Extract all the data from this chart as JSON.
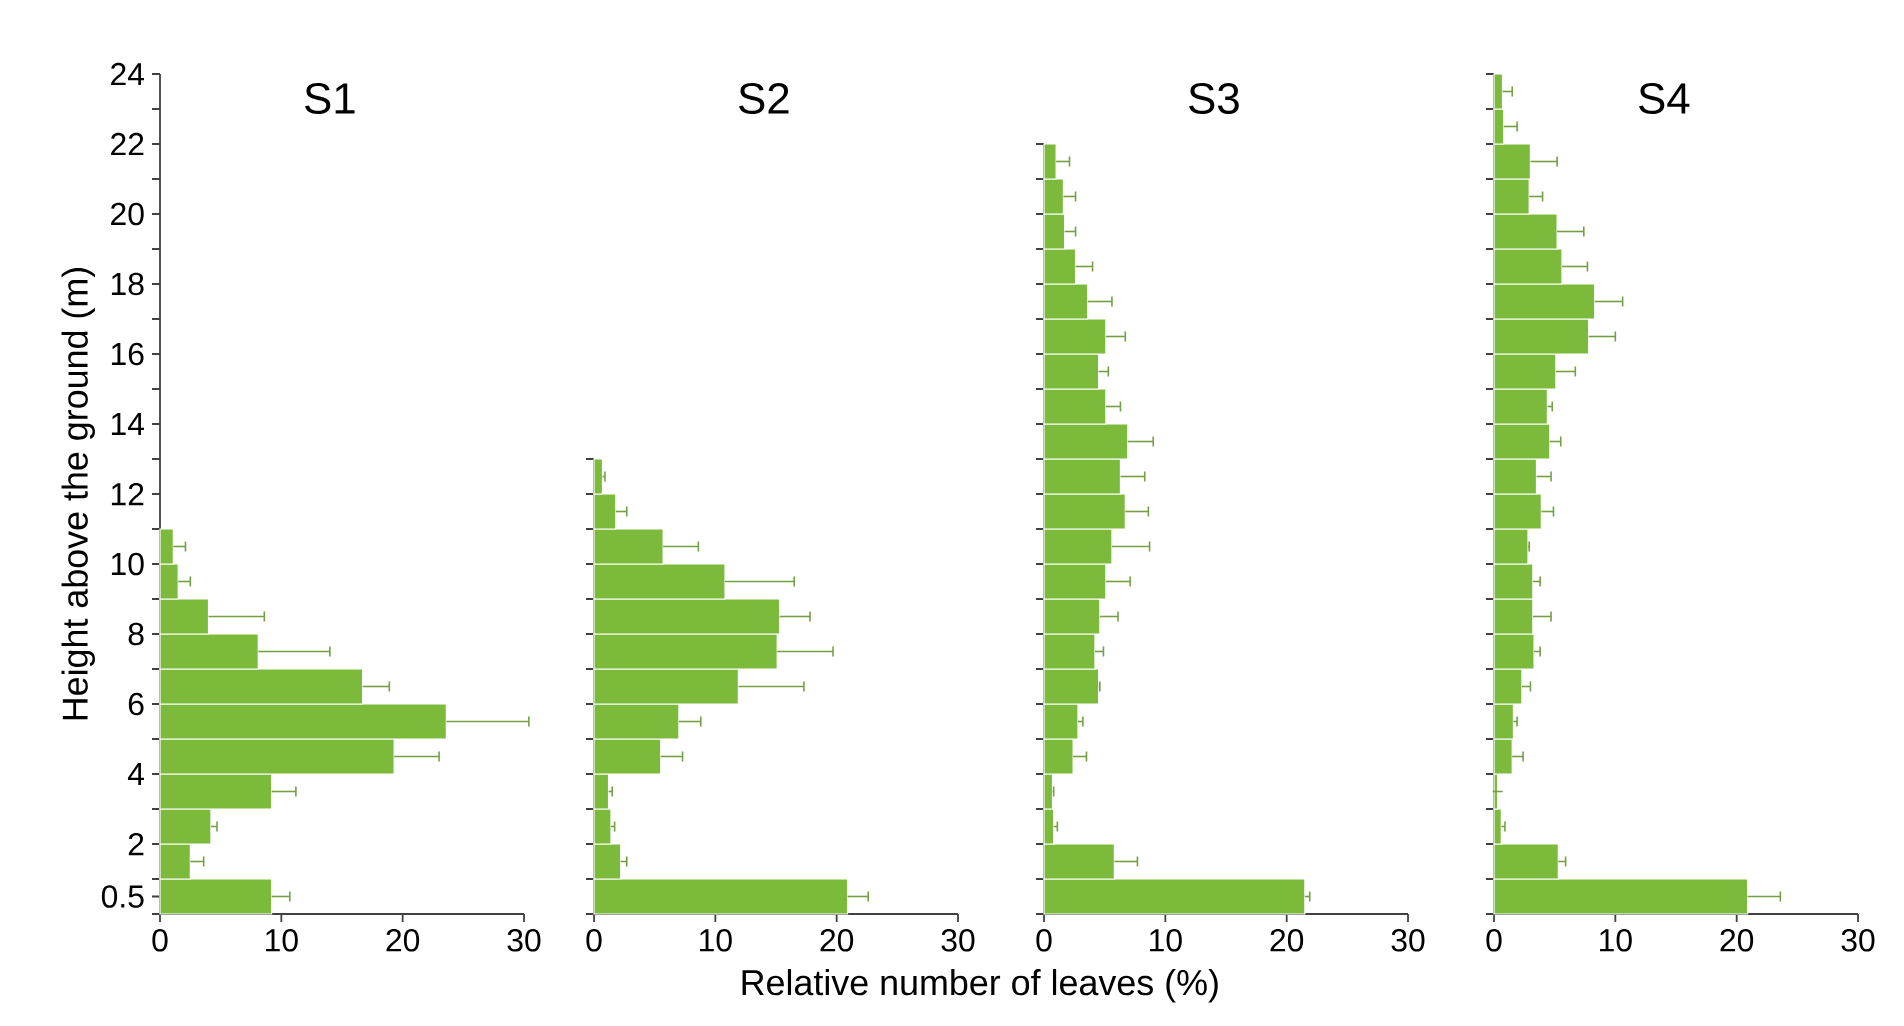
{
  "chart_data": [
    {
      "type": "bar",
      "orientation": "horizontal",
      "title": "S1",
      "ylabel": "Height above the ground (m)",
      "color": "#7cba3c",
      "x": [
        0.5,
        1.5,
        2.5,
        3.5,
        4.5,
        5.5,
        6.5,
        7.5,
        8.5,
        9.5,
        10.5
      ],
      "values": [
        9.2,
        2.5,
        4.2,
        9.2,
        19.3,
        23.6,
        16.7,
        8.1,
        4.0,
        1.5,
        1.1
      ],
      "errors": [
        [
          9.2,
          10.7
        ],
        [
          2.5,
          3.6
        ],
        [
          4.2,
          4.7
        ],
        [
          9.2,
          11.2
        ],
        [
          19.3,
          23.0
        ],
        [
          23.6,
          30.4
        ],
        [
          16.7,
          18.9
        ],
        [
          8.1,
          14.0
        ],
        [
          4.0,
          8.6
        ],
        [
          1.5,
          2.5
        ],
        [
          1.1,
          2.1
        ]
      ],
      "xlim": [
        0,
        30
      ],
      "xticks": [
        0,
        10,
        20,
        30
      ],
      "ylim": [
        0,
        24
      ],
      "yticks": [
        {
          "value": 0,
          "label": null
        },
        0.5,
        {
          "value": 1,
          "label": null
        },
        2,
        {
          "value": 3,
          "label": null
        },
        4,
        {
          "value": 5,
          "label": null
        },
        6,
        {
          "value": 7,
          "label": null
        },
        8,
        {
          "value": 9,
          "label": null
        },
        10,
        {
          "value": 11,
          "label": null
        },
        12,
        {
          "value": 13,
          "label": null
        },
        14,
        {
          "value": 15,
          "label": null
        },
        16,
        {
          "value": 17,
          "label": null
        },
        18,
        {
          "value": 19,
          "label": null
        },
        20,
        {
          "value": 21,
          "label": null
        },
        22,
        {
          "value": 23,
          "label": null
        },
        24
      ]
    },
    {
      "type": "bar",
      "orientation": "horizontal",
      "title": "S2",
      "xlabel": "Relative number of leaves (%)",
      "color": "#7cba3c",
      "tick_labels": "x",
      "x": [
        0.5,
        1.5,
        2.5,
        3.5,
        4.5,
        5.5,
        6.5,
        7.5,
        8.5,
        9.5,
        10.5,
        11.5,
        12.5
      ],
      "values": [
        20.9,
        2.2,
        1.4,
        1.2,
        5.5,
        7.0,
        11.9,
        15.1,
        15.3,
        10.8,
        5.7,
        1.8,
        0.7
      ],
      "errors": [
        [
          20.9,
          22.6
        ],
        [
          2.2,
          2.7
        ],
        [
          1.4,
          1.7
        ],
        [
          1.2,
          1.5
        ],
        [
          5.5,
          7.3
        ],
        [
          7.0,
          8.8
        ],
        [
          11.9,
          17.3
        ],
        [
          15.1,
          19.7
        ],
        [
          15.3,
          17.8
        ],
        [
          10.8,
          16.5
        ],
        [
          5.7,
          8.6
        ],
        [
          1.8,
          2.7
        ],
        [
          0.7,
          0.9
        ]
      ],
      "xlim": [
        0,
        30
      ],
      "xticks": [
        0,
        10,
        20,
        30
      ],
      "ylim": [
        0,
        13
      ],
      "yticks": [
        0,
        1,
        2,
        3,
        4,
        5,
        6,
        7,
        8,
        9,
        10,
        11,
        12,
        13
      ]
    },
    {
      "type": "bar",
      "orientation": "horizontal",
      "title": "S3",
      "color": "#7cba3c",
      "tick_labels": "x",
      "x": [
        0.5,
        1.5,
        2.5,
        3.5,
        4.5,
        5.5,
        6.5,
        7.5,
        8.5,
        9.5,
        10.5,
        11.5,
        12.5,
        13.5,
        14.5,
        15.5,
        16.5,
        17.5,
        18.5,
        19.5,
        20.5,
        21.5
      ],
      "values": [
        21.5,
        5.8,
        0.8,
        0.7,
        2.4,
        2.8,
        4.5,
        4.2,
        4.6,
        5.1,
        5.6,
        6.7,
        6.3,
        6.9,
        5.1,
        4.5,
        5.1,
        3.6,
        2.6,
        1.7,
        1.6,
        1.0
      ],
      "errors": [
        [
          21.5,
          21.9
        ],
        [
          5.8,
          7.7
        ],
        [
          0.8,
          1.1
        ],
        [
          0.7,
          0.8
        ],
        [
          2.4,
          3.5
        ],
        [
          2.8,
          3.2
        ],
        [
          4.5,
          4.6
        ],
        [
          4.2,
          4.9
        ],
        [
          4.6,
          6.1
        ],
        [
          5.1,
          7.1
        ],
        [
          5.6,
          8.7
        ],
        [
          6.7,
          8.6
        ],
        [
          6.3,
          8.3
        ],
        [
          6.9,
          9.0
        ],
        [
          5.1,
          6.3
        ],
        [
          4.5,
          5.3
        ],
        [
          5.1,
          6.7
        ],
        [
          3.6,
          5.6
        ],
        [
          2.6,
          4.0
        ],
        [
          1.7,
          2.6
        ],
        [
          1.6,
          2.6
        ],
        [
          1.0,
          2.1
        ]
      ],
      "xlim": [
        0,
        30
      ],
      "xticks": [
        0,
        10,
        20,
        30
      ],
      "ylim": [
        0,
        22
      ],
      "yticks": [
        0,
        1,
        2,
        3,
        4,
        5,
        6,
        7,
        8,
        9,
        10,
        11,
        12,
        13,
        14,
        15,
        16,
        17,
        18,
        19,
        20,
        21,
        22
      ]
    },
    {
      "type": "bar",
      "orientation": "horizontal",
      "title": "S4",
      "color": "#7cba3c",
      "tick_labels": "x",
      "x": [
        0.5,
        1.5,
        2.5,
        3.5,
        4.5,
        5.5,
        6.5,
        7.5,
        8.5,
        9.5,
        10.5,
        11.5,
        12.5,
        13.5,
        14.5,
        15.5,
        16.5,
        17.5,
        18.5,
        19.5,
        20.5,
        21.5,
        22.5,
        23.5
      ],
      "values": [
        20.9,
        5.3,
        0.6,
        0.3,
        1.5,
        1.6,
        2.3,
        3.3,
        3.2,
        3.2,
        2.8,
        3.9,
        3.5,
        4.6,
        4.4,
        5.1,
        7.8,
        8.3,
        5.6,
        5.2,
        2.9,
        3.0,
        0.8,
        0.7
      ],
      "errors": [
        [
          20.9,
          23.6
        ],
        [
          5.3,
          5.9
        ],
        [
          0.6,
          0.9
        ],
        null,
        [
          1.5,
          2.4
        ],
        [
          1.6,
          1.9
        ],
        [
          2.3,
          3.0
        ],
        [
          3.3,
          3.8
        ],
        [
          3.2,
          4.7
        ],
        [
          3.2,
          3.8
        ],
        [
          2.8,
          2.9
        ],
        [
          3.9,
          4.9
        ],
        [
          3.5,
          4.7
        ],
        [
          4.6,
          5.5
        ],
        [
          4.4,
          4.8
        ],
        [
          5.1,
          6.7
        ],
        [
          7.8,
          10.0
        ],
        [
          8.3,
          10.6
        ],
        [
          5.6,
          7.7
        ],
        [
          5.2,
          7.4
        ],
        [
          2.9,
          4.0
        ],
        [
          3.0,
          5.2
        ],
        [
          0.8,
          1.9
        ],
        [
          0.7,
          1.5
        ]
      ],
      "xlim": [
        0,
        30
      ],
      "xticks": [
        0,
        10,
        20,
        30
      ],
      "ylim": [
        0,
        24
      ],
      "yticks": [
        0,
        1,
        2,
        3,
        4,
        5,
        6,
        7,
        8,
        9,
        10,
        11,
        12,
        13,
        14,
        15,
        16,
        17,
        18,
        19,
        20,
        21,
        22,
        23,
        24
      ]
    }
  ]
}
